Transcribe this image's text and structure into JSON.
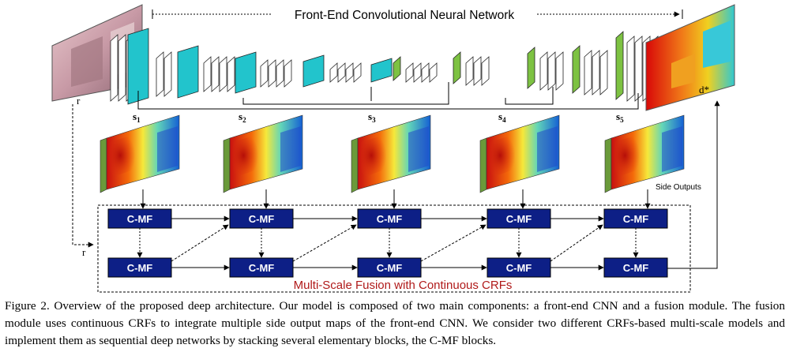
{
  "figure": {
    "cnn_title": "Front-End Convolutional Neural Network",
    "input_label": "r",
    "output_label": "d*",
    "side_labels": [
      "s1",
      "s2",
      "s3",
      "s4",
      "s5"
    ],
    "side_outputs_label": "Side Outputs",
    "fusion_title": "Multi-Scale Fusion with Continuous CRFs",
    "block_label": "C-MF",
    "r_label": "r",
    "colors": {
      "cyan_layer": "#22c4cc",
      "green_layer": "#7dc242",
      "cmf_block": "#0d1f86",
      "fusion_title": "#b01a1a"
    }
  },
  "caption": {
    "text": "Figure 2. Overview of the proposed deep architecture. Our model is composed of two main components: a front-end CNN and a fusion module. The fusion module uses continuous CRFs to integrate multiple side output maps of the front-end CNN. We consider two different CRFs-based multi-scale models and implement them as sequential deep networks by stacking several elementary blocks, the C-MF blocks."
  }
}
